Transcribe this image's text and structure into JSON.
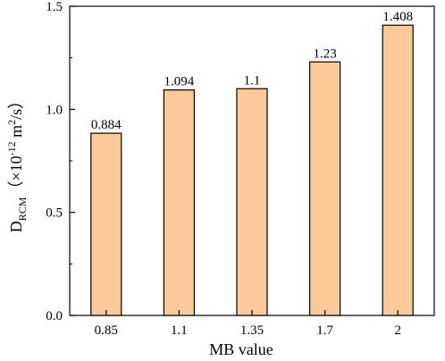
{
  "chart_data": {
    "type": "bar",
    "categories": [
      "0.85",
      "1.1",
      "1.35",
      "1.7",
      "2"
    ],
    "values": [
      0.884,
      1.094,
      1.1,
      1.23,
      1.408
    ],
    "data_labels": [
      "0.884",
      "1.094",
      "1.1",
      "1.23",
      "1.408"
    ],
    "xlabel": "MB value",
    "ylabel": {
      "base": "D",
      "subscript": "RCM",
      "open": "（×10",
      "exponent": "-12",
      "unit": " m",
      "unit_exponent": "2",
      "close": "/s）"
    },
    "ylim": [
      0,
      1.5
    ],
    "yticks": [
      "0.0",
      "0.5",
      "1.0",
      "1.5"
    ],
    "grid": false,
    "legend": "none",
    "colors": {
      "bar_fill": "#fbc99a",
      "bar_stroke": "#000000"
    }
  }
}
